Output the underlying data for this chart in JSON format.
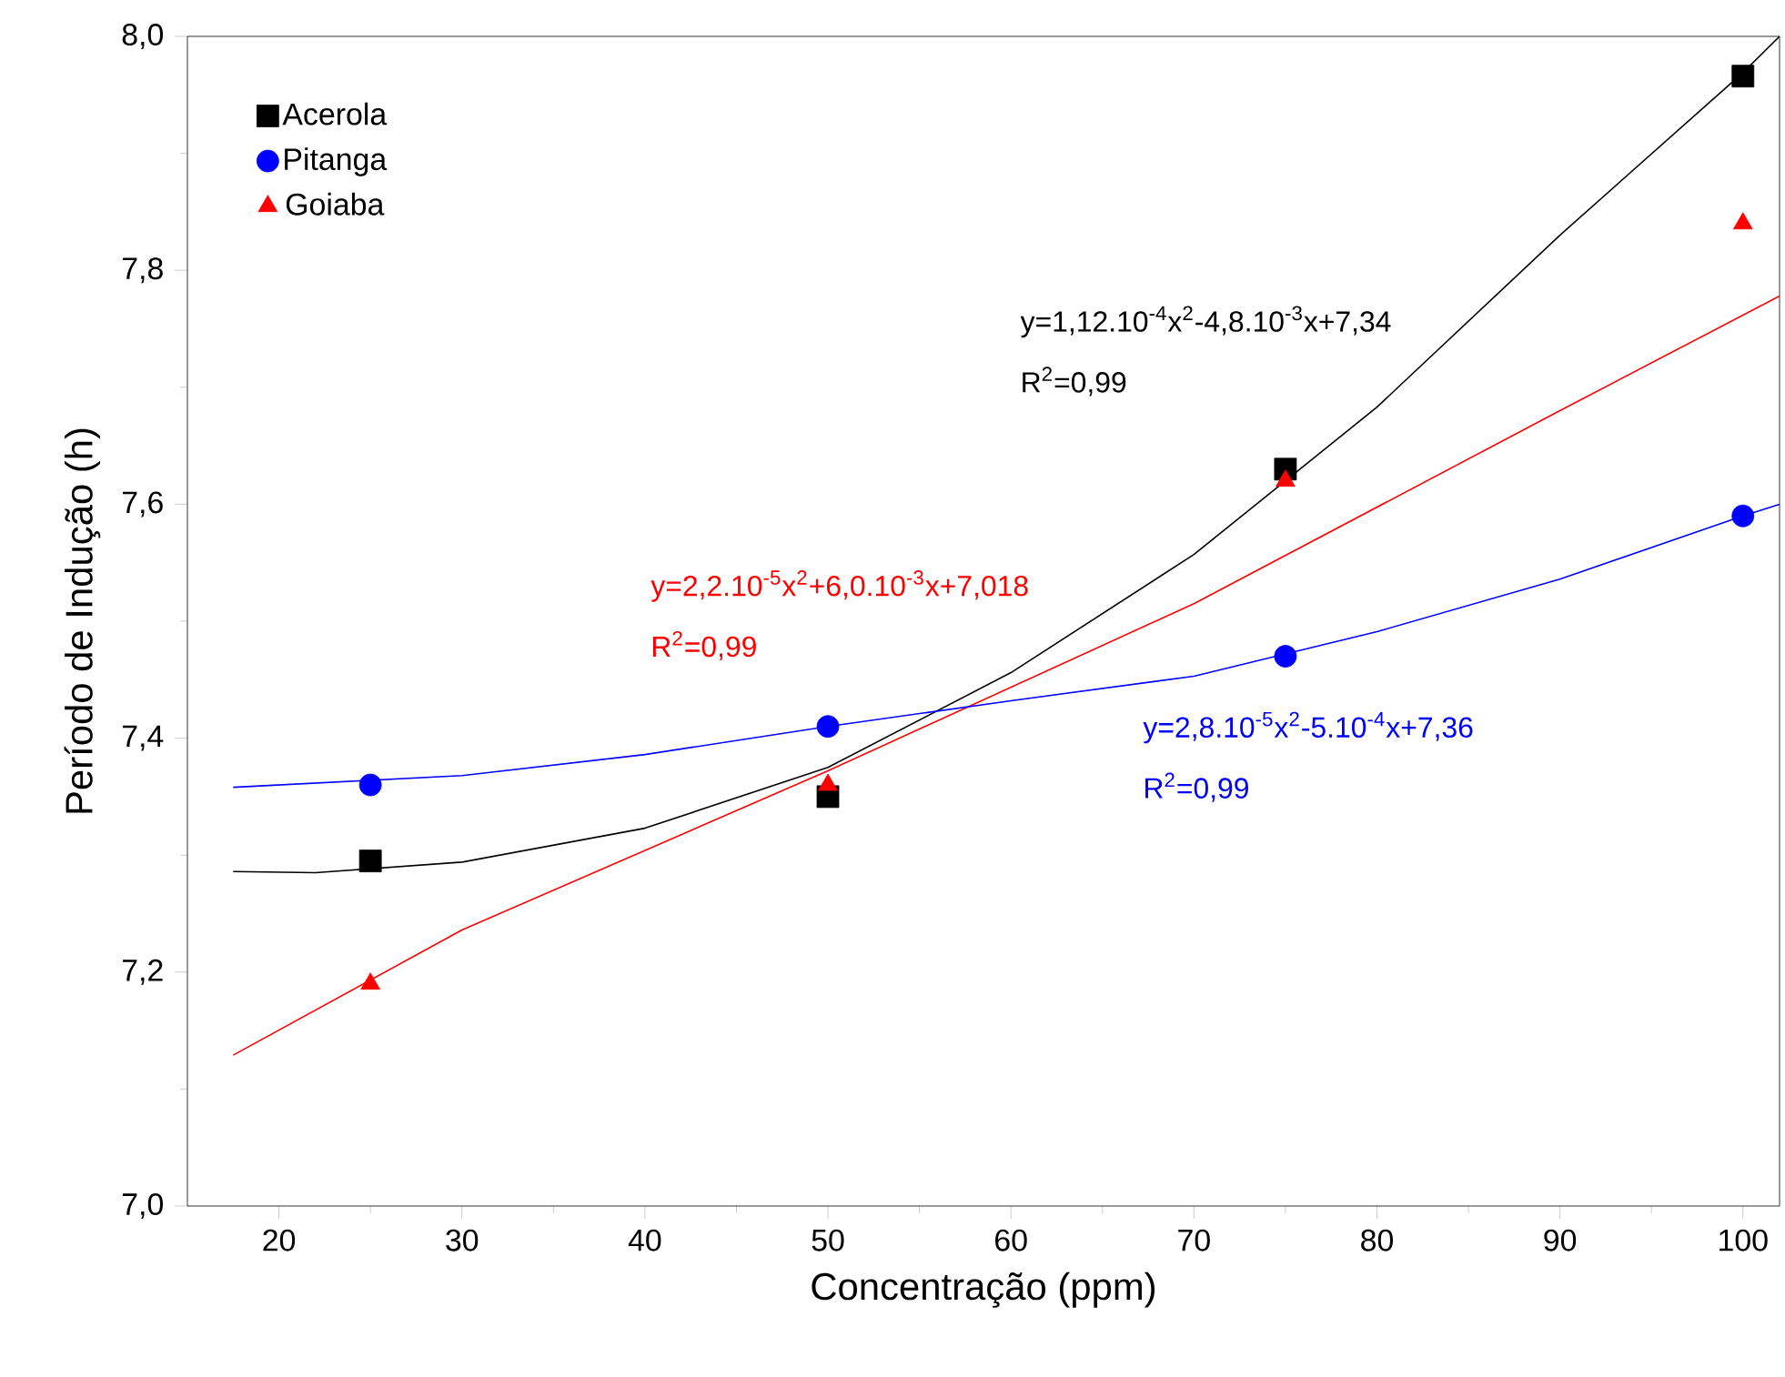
{
  "chart_data": {
    "type": "scatter",
    "xlabel": "Concentração (ppm)",
    "ylabel": "Período de Indução (h)",
    "xlim": [
      15,
      102
    ],
    "ylim": [
      7.0,
      8.0
    ],
    "xticks": [
      20,
      30,
      40,
      50,
      60,
      70,
      80,
      90,
      100
    ],
    "yticks": [
      {
        "value": 7.0,
        "label": "7,0"
      },
      {
        "value": 7.2,
        "label": "7,2"
      },
      {
        "value": 7.4,
        "label": "7,4"
      },
      {
        "value": 7.6,
        "label": "7,6"
      },
      {
        "value": 7.8,
        "label": "7,8"
      },
      {
        "value": 8.0,
        "label": "8,0"
      }
    ],
    "legend": "top left",
    "grid": false,
    "series": [
      {
        "name": "Acerola",
        "marker": "square",
        "color": "#000000",
        "x": [
          25,
          50,
          75,
          100
        ],
        "values": [
          7.295,
          7.35,
          7.63,
          7.966
        ]
      },
      {
        "name": "Pitanga",
        "marker": "circle",
        "color": "#0000ff",
        "x": [
          25,
          50,
          75,
          100
        ],
        "values": [
          7.36,
          7.41,
          7.47,
          7.59
        ]
      },
      {
        "name": "Goiaba",
        "marker": "triangle",
        "color": "#ff0000",
        "x": [
          25,
          50,
          75,
          100
        ],
        "values": [
          7.19,
          7.36,
          7.62,
          7.84
        ]
      },
      {
        "type": "line",
        "marker": "none",
        "color": "#000000",
        "x": [
          17.5,
          22,
          30,
          40,
          50,
          60,
          70,
          80,
          90,
          100,
          102
        ],
        "values": [
          7.286,
          7.285,
          7.294,
          7.323,
          7.375,
          7.456,
          7.557,
          7.683,
          7.83,
          7.969,
          8.0
        ]
      },
      {
        "type": "line",
        "marker": "none",
        "color": "#ff0000",
        "x": [
          17.5,
          30,
          50,
          70,
          90,
          102
        ],
        "values": [
          7.129,
          7.236,
          7.372,
          7.515,
          7.68,
          7.778
        ]
      },
      {
        "type": "line",
        "marker": "none",
        "color": "#0000ff",
        "x": [
          17.5,
          30,
          40,
          50,
          60,
          70,
          80,
          90,
          100,
          102
        ],
        "values": [
          7.358,
          7.368,
          7.386,
          7.41,
          7.432,
          7.453,
          7.491,
          7.536,
          7.59,
          7.6
        ]
      }
    ],
    "annotations": [
      "y=1,12.10$^{-4}$x$^{2}$-4,8.10$^{-3}$x+7,34",
      "R$^{2}$=0,99",
      "y=2,2.10$^{-5}$x$^{2}$+6,0.10$^{-3}$x+7,018",
      "R$^{2}$=0,99",
      "y=2,8.10$^{-5}$x$^{2}$-5.10$^{-4}$x+7,36",
      "R$^{2}$=0,99"
    ]
  }
}
